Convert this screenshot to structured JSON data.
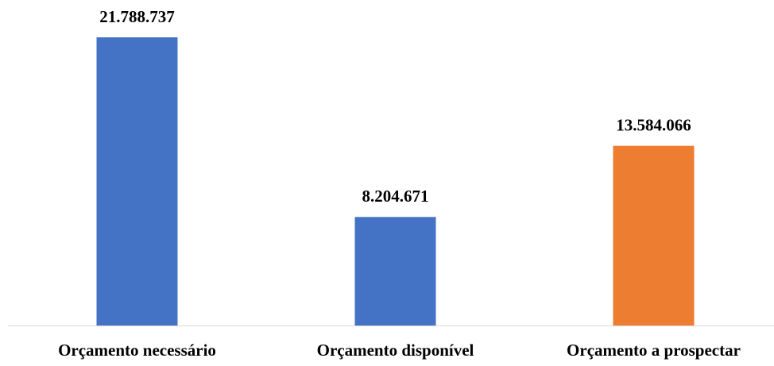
{
  "chart_data": {
    "type": "bar",
    "categories": [
      "Orçamento necessário",
      "Orçamento disponível",
      "Orçamento a prospectar"
    ],
    "values": [
      21788737,
      8204671,
      13584066
    ],
    "value_labels": [
      "21.788.737",
      "8.204.671",
      "13.584.066"
    ],
    "colors": [
      "#4472c4",
      "#4472c4",
      "#ed7d31"
    ]
  }
}
